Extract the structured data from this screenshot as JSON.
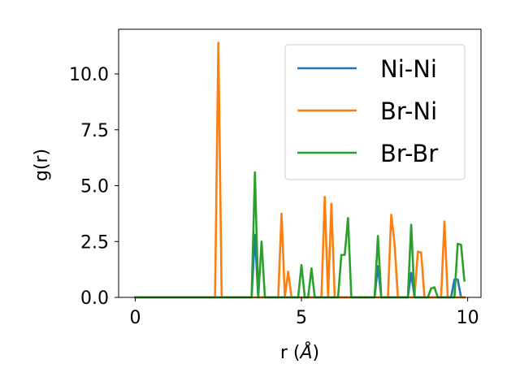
{
  "chart_data": {
    "type": "line",
    "xlabel_prefix": "r (",
    "xlabel_unit": "Å",
    "xlabel_suffix": ")",
    "ylabel": "g(r)",
    "xlim": [
      -0.5,
      10.4
    ],
    "ylim": [
      0,
      12.0
    ],
    "xticks": [
      0,
      5,
      10
    ],
    "xtick_labels": [
      "0",
      "5",
      "10"
    ],
    "yticks": [
      0.0,
      2.5,
      5.0,
      7.5,
      10.0
    ],
    "ytick_labels": [
      "0.0",
      "2.5",
      "5.0",
      "7.5",
      "10.0"
    ],
    "grid": false,
    "legend_position": "upper-right",
    "series": [
      {
        "name": "Ni-Ni",
        "color": "#1f77b4",
        "x": [
          0.0,
          3.4,
          3.5,
          3.6,
          3.7,
          3.8,
          7.1,
          7.2,
          7.3,
          7.4,
          8.1,
          8.2,
          8.3,
          8.4,
          9.4,
          9.5,
          9.6,
          9.7,
          9.8,
          9.9
        ],
        "y": [
          0.0,
          0.0,
          0.0,
          2.8,
          0.0,
          0.0,
          0.0,
          0.0,
          1.4,
          0.0,
          0.0,
          0.0,
          1.1,
          0.0,
          0.0,
          0.0,
          0.8,
          0.8,
          0.0,
          0.0
        ]
      },
      {
        "name": "Br-Ni",
        "color": "#ff7f0e",
        "x": [
          0.0,
          2.4,
          2.5,
          2.6,
          2.7,
          4.3,
          4.4,
          4.5,
          4.6,
          4.7,
          5.6,
          5.7,
          5.8,
          5.9,
          6.0,
          7.6,
          7.7,
          7.8,
          7.9,
          8.4,
          8.5,
          8.6,
          8.7,
          9.2,
          9.3,
          9.4,
          9.9
        ],
        "y": [
          0.0,
          0.0,
          11.4,
          0.0,
          0.0,
          0.0,
          3.75,
          0.0,
          1.15,
          0.0,
          0.0,
          4.5,
          0.0,
          4.2,
          0.0,
          0.0,
          3.7,
          2.4,
          0.0,
          0.0,
          2.05,
          2.0,
          0.0,
          0.0,
          3.4,
          0.0,
          0.0
        ]
      },
      {
        "name": "Br-Br",
        "color": "#2ca02c",
        "x": [
          0.0,
          3.4,
          3.5,
          3.6,
          3.7,
          3.8,
          3.9,
          4.8,
          4.9,
          5.0,
          5.1,
          5.2,
          5.3,
          5.4,
          6.0,
          6.1,
          6.2,
          6.3,
          6.4,
          6.5,
          7.1,
          7.2,
          7.3,
          7.4,
          8.1,
          8.2,
          8.3,
          8.4,
          8.7,
          8.8,
          8.9,
          9.0,
          9.1,
          9.5,
          9.6,
          9.7,
          9.8,
          9.9
        ],
        "y": [
          0.0,
          0.0,
          0.0,
          5.6,
          0.0,
          2.5,
          0.0,
          0.0,
          0.0,
          1.45,
          0.0,
          0.0,
          1.3,
          0.0,
          0.0,
          0.0,
          1.9,
          1.9,
          3.55,
          0.0,
          0.0,
          0.0,
          2.75,
          0.0,
          0.0,
          0.0,
          3.25,
          0.0,
          0.0,
          0.0,
          0.4,
          0.45,
          0.0,
          0.0,
          0.0,
          2.4,
          2.35,
          0.75
        ]
      }
    ]
  }
}
